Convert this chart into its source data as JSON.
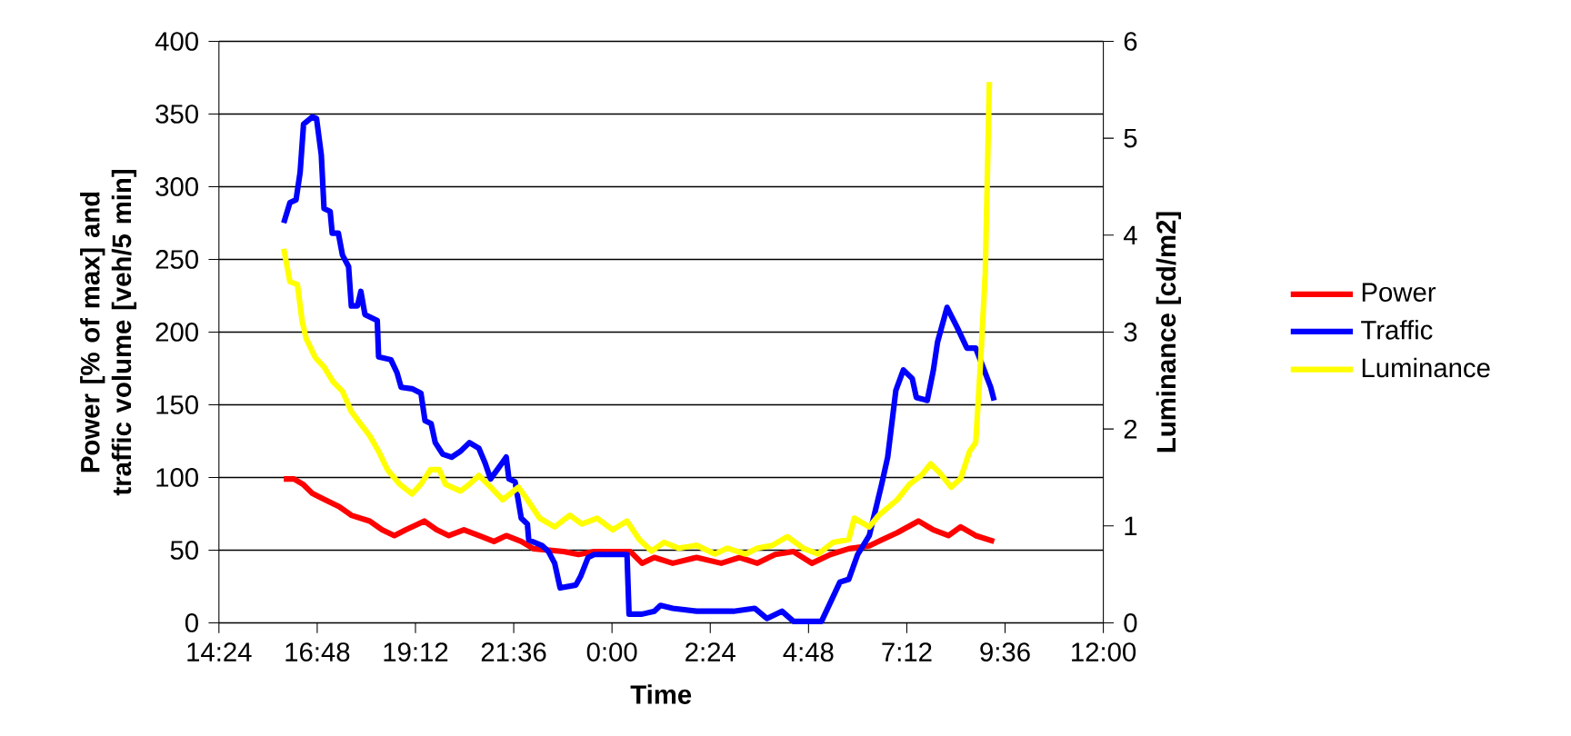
{
  "chart_data": {
    "type": "line",
    "xlabel": "Time",
    "ylabel": "Power [% of max] and traffic volume [veh/5 min]",
    "y2label": "Luminance [cd/m2]",
    "xlim": [
      "2000-01-01T14:24",
      "2000-01-02T12:00"
    ],
    "xticks": [
      {
        "value": "2000-01-01T14:24",
        "label": "14:24"
      },
      {
        "value": "2000-01-01T16:48",
        "label": "16:48"
      },
      {
        "value": "2000-01-01T19:12",
        "label": "19:12"
      },
      {
        "value": "2000-01-01T21:36",
        "label": "21:36"
      },
      {
        "value": "2000-01-02T00:00",
        "label": "0:00"
      },
      {
        "value": "2000-01-02T02:24",
        "label": "2:24"
      },
      {
        "value": "2000-01-02T04:48",
        "label": "4:48"
      },
      {
        "value": "2000-01-02T07:12",
        "label": "7:12"
      },
      {
        "value": "2000-01-02T09:36",
        "label": "9:36"
      },
      {
        "value": "2000-01-02T12:00",
        "label": "12:00"
      }
    ],
    "ylim": [
      0,
      400
    ],
    "yticks": [
      0,
      50,
      100,
      150,
      200,
      250,
      300,
      350,
      400
    ],
    "y2lim": [
      0,
      6
    ],
    "y2ticks": [
      0,
      1,
      2,
      3,
      4,
      5,
      6
    ],
    "grid": "y",
    "legend": "right",
    "series": [
      {
        "name": "Power",
        "color": "#ff0000",
        "x": [
          "2000-01-01T15:59",
          "2000-01-01T16:14",
          "2000-01-01T16:28",
          "2000-01-01T16:41",
          "2000-01-01T16:58",
          "2000-01-01T17:20",
          "2000-01-01T17:38",
          "2000-01-01T18:05",
          "2000-01-01T18:23",
          "2000-01-01T18:41",
          "2000-01-01T18:58",
          "2000-01-01T19:25",
          "2000-01-01T19:43",
          "2000-01-01T20:01",
          "2000-01-01T20:23",
          "2000-01-01T20:45",
          "2000-01-01T21:07",
          "2000-01-01T21:25",
          "2000-01-01T21:47",
          "2000-01-01T22:05",
          "2000-01-01T22:49",
          "2000-01-01T23:11",
          "2000-01-01T23:34",
          "2000-01-02T00:27",
          "2000-01-02T00:44",
          "2000-01-02T01:02",
          "2000-01-02T01:29",
          "2000-01-02T02:04",
          "2000-01-02T02:40",
          "2000-01-02T03:07",
          "2000-01-02T03:33",
          "2000-01-02T03:59",
          "2000-01-02T04:26",
          "2000-01-02T04:53",
          "2000-01-02T05:20",
          "2000-01-02T05:47",
          "2000-01-02T06:17",
          "2000-01-02T06:35",
          "2000-01-02T06:58",
          "2000-01-02T07:29",
          "2000-01-02T07:51",
          "2000-01-02T08:13",
          "2000-01-02T08:31",
          "2000-01-02T08:53",
          "2000-01-02T09:20"
        ],
        "values": [
          99,
          99,
          95,
          89,
          85,
          80,
          74,
          70,
          64,
          60,
          64,
          70,
          64,
          60,
          64,
          60,
          56,
          60,
          56,
          51,
          49,
          47,
          49,
          49,
          41,
          45,
          41,
          45,
          41,
          45,
          41,
          47,
          49,
          41,
          47,
          51,
          53,
          57,
          62,
          70,
          64,
          60,
          66,
          60,
          56
        ]
      },
      {
        "name": "Traffic",
        "color": "#0000ff",
        "x": [
          "2000-01-01T15:59",
          "2000-01-01T16:08",
          "2000-01-01T16:17",
          "2000-01-01T16:23",
          "2000-01-01T16:28",
          "2000-01-01T16:41",
          "2000-01-01T16:47",
          "2000-01-01T16:54",
          "2000-01-01T16:58",
          "2000-01-01T17:07",
          "2000-01-01T17:10",
          "2000-01-01T17:19",
          "2000-01-01T17:25",
          "2000-01-01T17:34",
          "2000-01-01T17:38",
          "2000-01-01T17:47",
          "2000-01-01T17:52",
          "2000-01-01T17:58",
          "2000-01-01T18:16",
          "2000-01-01T18:18",
          "2000-01-01T18:36",
          "2000-01-01T18:45",
          "2000-01-01T18:51",
          "2000-01-01T19:07",
          "2000-01-01T19:20",
          "2000-01-01T19:26",
          "2000-01-01T19:35",
          "2000-01-01T19:41",
          "2000-01-01T19:52",
          "2000-01-01T20:05",
          "2000-01-01T20:18",
          "2000-01-01T20:31",
          "2000-01-01T20:45",
          "2000-01-01T20:54",
          "2000-01-01T21:02",
          "2000-01-01T21:16",
          "2000-01-01T21:25",
          "2000-01-01T21:29",
          "2000-01-01T21:38",
          "2000-01-01T21:47",
          "2000-01-01T21:56",
          "2000-01-01T21:58",
          "2000-01-01T22:18",
          "2000-01-01T22:27",
          "2000-01-01T22:36",
          "2000-01-01T22:44",
          "2000-01-01T23:07",
          "2000-01-01T23:14",
          "2000-01-01T23:25",
          "2000-01-01T23:34",
          "2000-01-02T00:22",
          "2000-01-02T00:25",
          "2000-01-02T00:44",
          "2000-01-02T01:02",
          "2000-01-02T01:11",
          "2000-01-02T01:29",
          "2000-01-02T02:04",
          "2000-01-02T02:58",
          "2000-01-02T03:29",
          "2000-01-02T03:47",
          "2000-01-02T04:09",
          "2000-01-02T04:26",
          "2000-01-02T05:07",
          "2000-01-02T05:34",
          "2000-01-02T05:47",
          "2000-01-02T06:00",
          "2000-01-02T06:17",
          "2000-01-02T06:35",
          "2000-01-02T06:44",
          "2000-01-02T06:56",
          "2000-01-02T07:07",
          "2000-01-02T07:20",
          "2000-01-02T07:26",
          "2000-01-02T07:42",
          "2000-01-02T07:51",
          "2000-01-02T07:57",
          "2000-01-02T08:11",
          "2000-01-02T08:26",
          "2000-01-02T08:40",
          "2000-01-02T08:53",
          "2000-01-02T09:02",
          "2000-01-02T09:15",
          "2000-01-02T09:20"
        ],
        "values": [
          275,
          289,
          291,
          310,
          343,
          348,
          347,
          322,
          285,
          283,
          268,
          268,
          253,
          245,
          218,
          218,
          228,
          212,
          208,
          183,
          181,
          172,
          162,
          161,
          158,
          139,
          137,
          124,
          116,
          114,
          118,
          124,
          120,
          110,
          99,
          108,
          114,
          99,
          97,
          72,
          68,
          57,
          53,
          49,
          41,
          24,
          26,
          32,
          45,
          47,
          47,
          6,
          6,
          8,
          12,
          10,
          8,
          8,
          10,
          3,
          8,
          1,
          1,
          28,
          30,
          47,
          60,
          95,
          114,
          160,
          174,
          168,
          155,
          153,
          174,
          193,
          217,
          203,
          189,
          189,
          178,
          162,
          153
        ]
      },
      {
        "name": "Luminance",
        "color": "#ffff00",
        "axis": "y2",
        "x": [
          "2000-01-01T15:59",
          "2000-01-01T16:08",
          "2000-01-01T16:19",
          "2000-01-01T16:26",
          "2000-01-01T16:32",
          "2000-01-01T16:45",
          "2000-01-01T16:58",
          "2000-01-01T17:11",
          "2000-01-01T17:25",
          "2000-01-01T17:38",
          "2000-01-01T17:52",
          "2000-01-01T18:05",
          "2000-01-01T18:18",
          "2000-01-01T18:31",
          "2000-01-01T18:49",
          "2000-01-01T19:07",
          "2000-01-01T19:20",
          "2000-01-01T19:34",
          "2000-01-01T19:47",
          "2000-01-01T19:56",
          "2000-01-01T20:18",
          "2000-01-01T20:31",
          "2000-01-01T20:45",
          "2000-01-01T20:58",
          "2000-01-01T21:20",
          "2000-01-01T21:43",
          "2000-01-01T21:56",
          "2000-01-01T22:14",
          "2000-01-01T22:36",
          "2000-01-01T22:58",
          "2000-01-01T23:16",
          "2000-01-01T23:38",
          "2000-01-02T00:01",
          "2000-01-02T00:22",
          "2000-01-02T00:40",
          "2000-01-02T00:58",
          "2000-01-02T01:16",
          "2000-01-02T01:38",
          "2000-01-02T02:04",
          "2000-01-02T02:31",
          "2000-01-02T02:49",
          "2000-01-02T03:16",
          "2000-01-02T03:33",
          "2000-01-02T03:55",
          "2000-01-02T04:17",
          "2000-01-02T04:40",
          "2000-01-02T05:02",
          "2000-01-02T05:24",
          "2000-01-02T05:47",
          "2000-01-02T05:55",
          "2000-01-02T06:17",
          "2000-01-02T06:31",
          "2000-01-02T06:58",
          "2000-01-02T07:16",
          "2000-01-02T07:33",
          "2000-01-02T07:47",
          "2000-01-02T08:00",
          "2000-01-02T08:17",
          "2000-01-02T08:31",
          "2000-01-02T08:44",
          "2000-01-02T08:53",
          "2000-01-02T09:00",
          "2000-01-02T09:07",
          "2000-01-02T09:13"
        ],
        "values": [
          3.86,
          3.52,
          3.49,
          3.11,
          2.93,
          2.74,
          2.64,
          2.49,
          2.39,
          2.18,
          2.05,
          1.93,
          1.77,
          1.58,
          1.43,
          1.33,
          1.43,
          1.58,
          1.58,
          1.43,
          1.36,
          1.43,
          1.52,
          1.43,
          1.27,
          1.4,
          1.27,
          1.08,
          0.99,
          1.11,
          1.02,
          1.08,
          0.96,
          1.05,
          0.86,
          0.74,
          0.83,
          0.77,
          0.8,
          0.71,
          0.77,
          0.71,
          0.77,
          0.8,
          0.89,
          0.77,
          0.71,
          0.83,
          0.86,
          1.08,
          0.99,
          1.11,
          1.27,
          1.43,
          1.52,
          1.64,
          1.55,
          1.4,
          1.49,
          1.77,
          1.86,
          2.68,
          3.61,
          5.58
        ]
      }
    ]
  }
}
